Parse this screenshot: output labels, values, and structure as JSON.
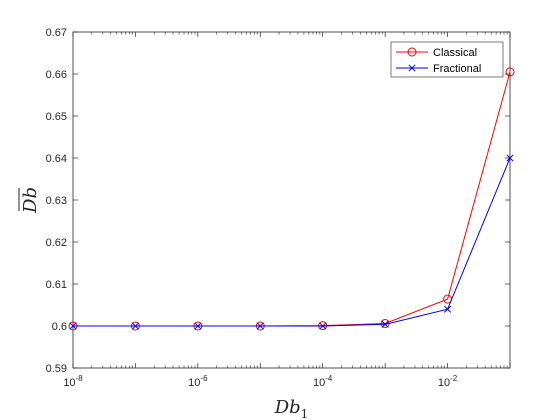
{
  "chart_data": {
    "type": "line",
    "title": "",
    "xlabel": "Db_1",
    "xlabel_main": "Db",
    "xlabel_sub": "1",
    "ylabel": "Db (overlined)",
    "ylabel_text": "Db",
    "xscale": "log",
    "xlim": [
      1e-08,
      0.1
    ],
    "ylim": [
      0.59,
      0.67
    ],
    "x": [
      1e-08,
      1e-07,
      1e-06,
      1e-05,
      0.0001,
      0.001,
      0.01,
      0.1
    ],
    "x_ticks": [
      {
        "value": 1e-08,
        "base": "10",
        "exp": "-8"
      },
      {
        "value": 1e-06,
        "base": "10",
        "exp": "-6"
      },
      {
        "value": 0.0001,
        "base": "10",
        "exp": "-4"
      },
      {
        "value": 0.01,
        "base": "10",
        "exp": "-2"
      }
    ],
    "y_ticks": [
      {
        "value": 0.59,
        "label": "0.59"
      },
      {
        "value": 0.6,
        "label": "0.6"
      },
      {
        "value": 0.61,
        "label": "0.61"
      },
      {
        "value": 0.62,
        "label": "0.62"
      },
      {
        "value": 0.63,
        "label": "0.63"
      },
      {
        "value": 0.64,
        "label": "0.64"
      },
      {
        "value": 0.65,
        "label": "0.65"
      },
      {
        "value": 0.66,
        "label": "0.66"
      },
      {
        "value": 0.67,
        "label": "0.67"
      }
    ],
    "series": [
      {
        "name": "Classical",
        "color": "#ff0000",
        "marker": "circle",
        "values": [
          0.6,
          0.6,
          0.6,
          0.6,
          0.6001,
          0.6006,
          0.6064,
          0.6605
        ]
      },
      {
        "name": "Fractional",
        "color": "#0000ff",
        "marker": "x",
        "values": [
          0.6,
          0.6,
          0.6,
          0.6,
          0.6,
          0.6004,
          0.604,
          0.64
        ]
      }
    ],
    "legend_position": "top-right",
    "grid": false,
    "box": true
  }
}
